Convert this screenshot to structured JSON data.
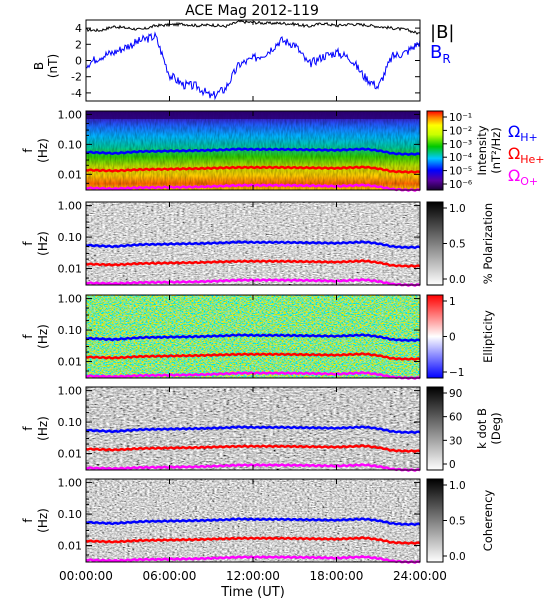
{
  "chart_data": [
    {
      "panel": "field",
      "type": "line",
      "title": "ACE Mag 2012-119",
      "ylabel": "B",
      "yunit": "(nT)",
      "ylim": [
        -5,
        5
      ],
      "yticks": [
        4,
        2,
        0,
        -2,
        -4
      ],
      "series": [
        {
          "name": "|B|",
          "color": "#000000",
          "x": [
            0,
            1,
            2,
            3,
            4,
            5,
            6,
            7,
            8,
            9,
            10,
            11,
            12,
            13,
            14,
            15,
            16,
            17,
            18,
            19,
            20,
            21,
            22,
            23,
            24
          ],
          "values": [
            3.8,
            3.7,
            4.2,
            4.0,
            3.8,
            4.3,
            4.4,
            4.5,
            4.3,
            4.4,
            4.2,
            4.8,
            4.7,
            4.6,
            4.6,
            4.5,
            4.2,
            4.6,
            4.3,
            4.5,
            4.4,
            4.2,
            4.0,
            3.8,
            3.3
          ]
        },
        {
          "name": "B",
          "label_sub": "R",
          "color": "#0000ff",
          "x": [
            0,
            1,
            2,
            3,
            4,
            5,
            6,
            7,
            8,
            9,
            10,
            11,
            12,
            13,
            14,
            15,
            16,
            17,
            18,
            19,
            20,
            21,
            22,
            23,
            24
          ],
          "values": [
            -0.5,
            0.5,
            1.0,
            1.8,
            2.5,
            3.0,
            -1.8,
            -3.0,
            -3.2,
            -4.5,
            -3.5,
            -0.5,
            0.2,
            1.0,
            2.5,
            2.0,
            -0.5,
            0.5,
            1.0,
            0.3,
            -2.0,
            -3.3,
            0.5,
            1.0,
            2.3
          ]
        }
      ]
    },
    {
      "panel": "intensity",
      "type": "heatmap",
      "ylabel": "f",
      "yunit": "(Hz)",
      "yscale": "log",
      "ylim": [
        0.003,
        1.3
      ],
      "yticks": [
        "1.00",
        "0.10",
        "0.01"
      ],
      "colorbar": {
        "label": "Intensity",
        "unit": "(nT²/Hz)",
        "scale": "log",
        "ticks": [
          "10⁻¹",
          "10⁻²",
          "10⁻³",
          "10⁻⁴",
          "10⁻⁵",
          "10⁻⁶"
        ],
        "colormap": "rainbow"
      },
      "legend": [
        {
          "symbol": "Ω",
          "sub": "H+",
          "color": "#0000ff"
        },
        {
          "symbol": "Ω",
          "sub": "He+",
          "color": "#ff0000"
        },
        {
          "symbol": "Ω",
          "sub": "O+",
          "color": "#ff00ff"
        }
      ]
    },
    {
      "panel": "polarization",
      "type": "heatmap",
      "ylabel": "f",
      "yunit": "(Hz)",
      "yscale": "log",
      "yticks": [
        "1.00",
        "0.10",
        "0.01"
      ],
      "colorbar": {
        "label": "% Polarization",
        "unit": "",
        "ticks": [
          "1.0",
          "0.5",
          "0.0"
        ],
        "colormap": "gray"
      }
    },
    {
      "panel": "ellipticity",
      "type": "heatmap",
      "ylabel": "f",
      "yunit": "(Hz)",
      "yscale": "log",
      "yticks": [
        "1.00",
        "0.10",
        "0.01"
      ],
      "colorbar": {
        "label": "Ellipticity",
        "unit": "",
        "ticks": [
          "1",
          "0",
          "−1"
        ],
        "colormap": "bwr"
      }
    },
    {
      "panel": "kdotb",
      "type": "heatmap",
      "ylabel": "f",
      "yunit": "(Hz)",
      "yscale": "log",
      "yticks": [
        "1.00",
        "0.10",
        "0.01"
      ],
      "colorbar": {
        "label": "k dot B",
        "unit": "(Deg)",
        "ticks": [
          "90",
          "60",
          "30",
          "0"
        ],
        "colormap": "gray"
      }
    },
    {
      "panel": "coherency",
      "type": "heatmap",
      "ylabel": "f",
      "yunit": "(Hz)",
      "yscale": "log",
      "yticks": [
        "1.00",
        "0.10",
        "0.01"
      ],
      "colorbar": {
        "label": "Coherency",
        "unit": "",
        "ticks": [
          "1.0",
          "0.5",
          "0.0"
        ],
        "colormap": "gray"
      }
    }
  ],
  "gyrofrequencies": {
    "x_hours": [
      0,
      2,
      4,
      6,
      8,
      10,
      11,
      12,
      14,
      16,
      18,
      20,
      21,
      22,
      23,
      24
    ],
    "H+": [
      0.055,
      0.05,
      0.058,
      0.06,
      0.062,
      0.066,
      0.07,
      0.068,
      0.068,
      0.066,
      0.064,
      0.07,
      0.062,
      0.05,
      0.047,
      0.048
    ],
    "He+": [
      0.014,
      0.013,
      0.0145,
      0.015,
      0.0155,
      0.0165,
      0.017,
      0.017,
      0.017,
      0.0165,
      0.016,
      0.0175,
      0.0155,
      0.0125,
      0.012,
      0.012
    ],
    "O+": [
      0.0035,
      0.0033,
      0.0036,
      0.0037,
      0.0038,
      0.0041,
      0.0043,
      0.0043,
      0.0043,
      0.0042,
      0.004,
      0.0044,
      0.0039,
      0.0032,
      0.003,
      0.003
    ]
  },
  "x_axis": {
    "label": "Time (UT)",
    "range_hours": [
      0,
      24
    ],
    "ticks": [
      "00:00:00",
      "06:00:00",
      "12:00:00",
      "18:00:00",
      "24:00:00"
    ]
  },
  "colors": {
    "H+": "#0000ff",
    "He+": "#ff0000",
    "O+": "#ff00ff",
    "B": "#000000",
    "BR": "#0000ff"
  }
}
